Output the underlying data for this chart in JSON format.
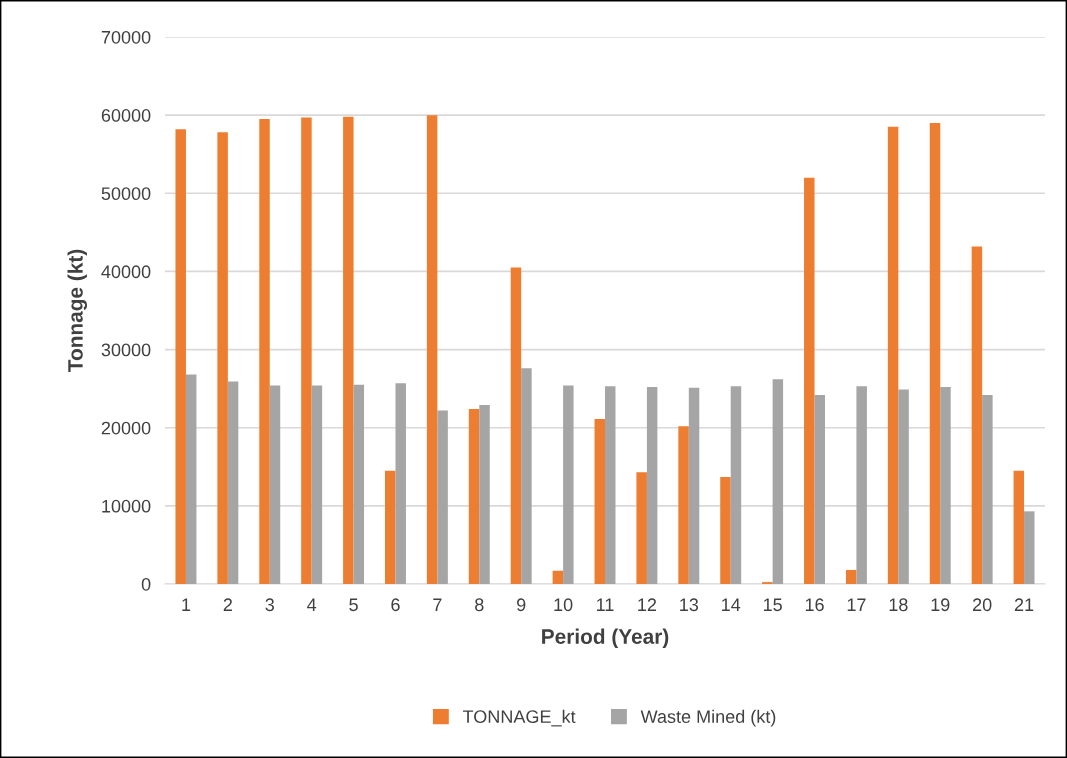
{
  "chart_data": {
    "type": "bar",
    "xlabel": "Period (Year)",
    "ylabel": "Tonnage (kt)",
    "categories": [
      "1",
      "2",
      "3",
      "4",
      "5",
      "6",
      "7",
      "8",
      "9",
      "10",
      "11",
      "12",
      "13",
      "14",
      "15",
      "16",
      "17",
      "18",
      "19",
      "20",
      "21"
    ],
    "series": [
      {
        "name": "TONNAGE_kt",
        "color": "#ed7d31",
        "values": [
          58200,
          57800,
          59500,
          59700,
          59800,
          14500,
          60000,
          22400,
          40500,
          1700,
          21100,
          14300,
          20200,
          13700,
          240,
          52000,
          1800,
          58500,
          59000,
          43200,
          14500
        ]
      },
      {
        "name": "Waste Mined (kt)",
        "color": "#a5a5a5",
        "values": [
          26800,
          25900,
          25400,
          25400,
          25500,
          25700,
          22200,
          22900,
          27600,
          25400,
          25300,
          25200,
          25100,
          25300,
          26200,
          24200,
          25300,
          24900,
          25200,
          24200,
          9300
        ]
      }
    ],
    "ylim": [
      0,
      70000
    ],
    "yticks": [
      0,
      10000,
      20000,
      30000,
      40000,
      50000,
      60000,
      70000
    ],
    "grid": "y",
    "legend": "bottom"
  }
}
